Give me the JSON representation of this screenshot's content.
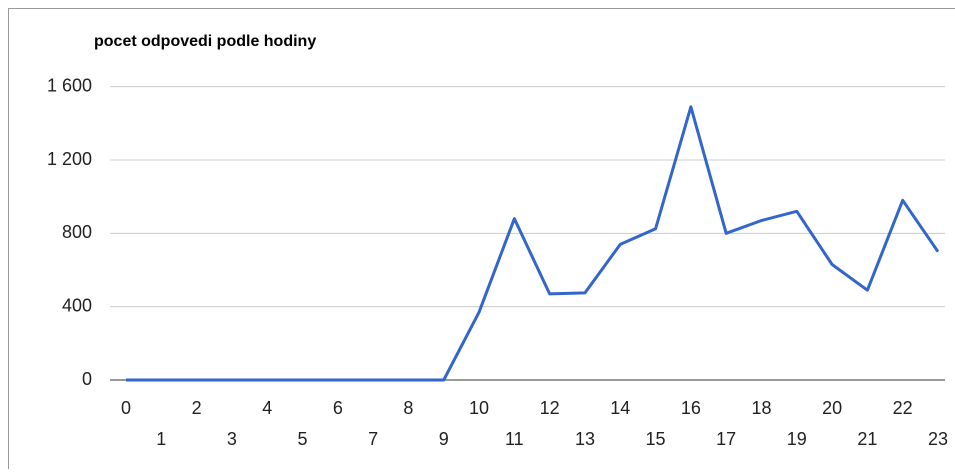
{
  "chart_data": {
    "type": "line",
    "title": "pocet odpovedi podle hodiny",
    "x": [
      0,
      1,
      2,
      3,
      4,
      5,
      6,
      7,
      8,
      9,
      10,
      11,
      12,
      13,
      14,
      15,
      16,
      17,
      18,
      19,
      20,
      21,
      22,
      23
    ],
    "series": [
      {
        "color": "#3366cc",
        "values": [
          0,
          0,
          0,
          0,
          0,
          0,
          0,
          0,
          0,
          0,
          370,
          880,
          470,
          475,
          740,
          825,
          1490,
          800,
          870,
          920,
          630,
          490,
          980,
          700
        ]
      }
    ],
    "xlim": [
      0,
      23
    ],
    "xticks": [
      0,
      1,
      2,
      3,
      4,
      5,
      6,
      7,
      8,
      9,
      10,
      11,
      12,
      13,
      14,
      15,
      16,
      17,
      18,
      19,
      20,
      21,
      22,
      23
    ],
    "ylim": [
      0,
      1800
    ],
    "yticks": [
      0,
      400,
      800,
      {
        "value": 1200,
        "label": "1 200"
      },
      {
        "value": 1600,
        "label": "1 600"
      }
    ],
    "grid": true
  }
}
